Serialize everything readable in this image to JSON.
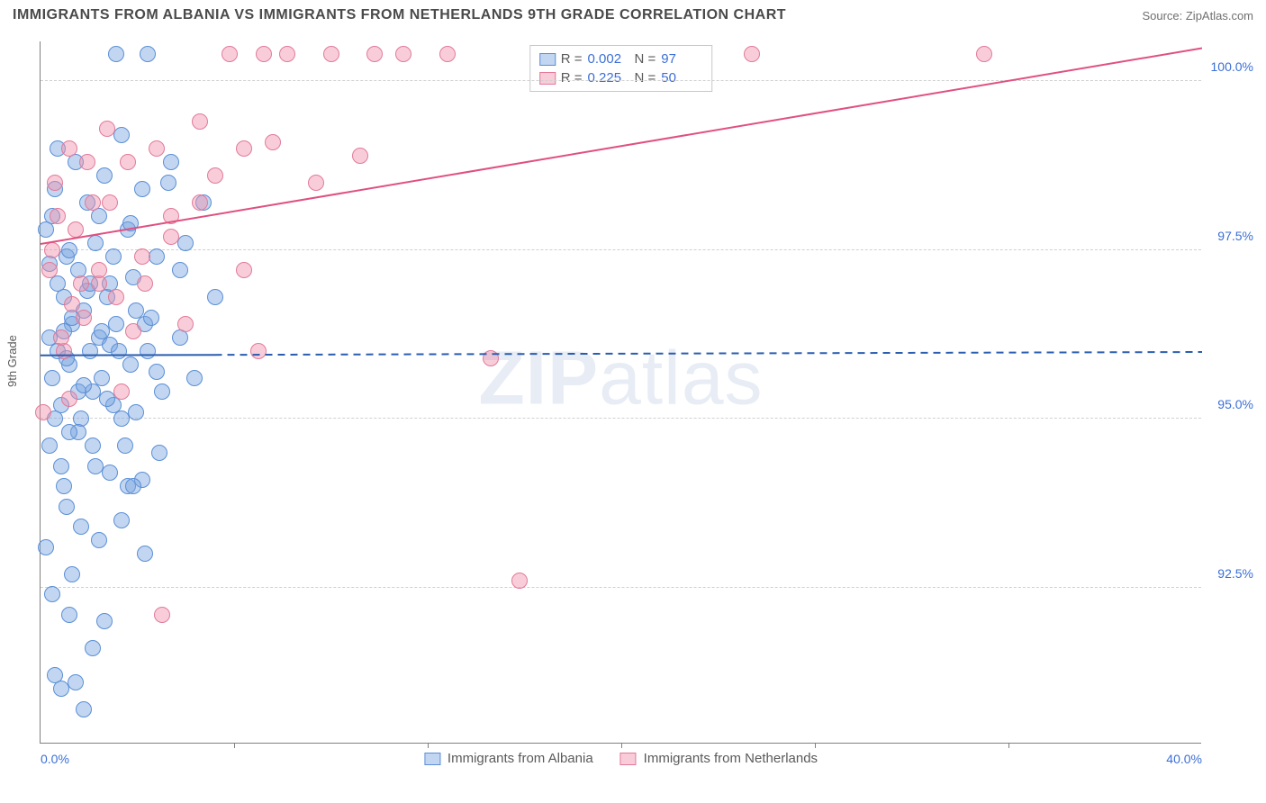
{
  "title": "IMMIGRANTS FROM ALBANIA VS IMMIGRANTS FROM NETHERLANDS 9TH GRADE CORRELATION CHART",
  "source": "Source: ZipAtlas.com",
  "watermark_a": "ZIP",
  "watermark_b": "atlas",
  "ylabel": "9th Grade",
  "chart": {
    "type": "scatter",
    "xlim": [
      0,
      40
    ],
    "ylim": [
      90.2,
      100.6
    ],
    "x_ticks": [
      0,
      40
    ],
    "x_tick_labels": [
      "0.0%",
      "40.0%"
    ],
    "x_minor_ticks": [
      6.67,
      13.33,
      20,
      26.67,
      33.33
    ],
    "y_ticks": [
      92.5,
      95.0,
      97.5,
      100.0
    ],
    "y_tick_labels": [
      "92.5%",
      "95.0%",
      "97.5%",
      "100.0%"
    ],
    "grid_color": "#d0d0d0",
    "background_color": "#ffffff",
    "point_radius": 9,
    "series": [
      {
        "name": "Immigrants from Albania",
        "fill": "rgba(120,165,225,0.45)",
        "stroke": "#5a8fd6",
        "R": "0.002",
        "N": "97",
        "trend": {
          "y_at_x0": 95.95,
          "y_at_x40": 96.0,
          "solid_until_x": 6.0,
          "color": "#2a5db0",
          "width": 2
        },
        "points": [
          [
            0.2,
            97.8
          ],
          [
            0.3,
            96.2
          ],
          [
            0.4,
            95.6
          ],
          [
            0.5,
            98.4
          ],
          [
            0.6,
            97.0
          ],
          [
            0.7,
            95.2
          ],
          [
            0.8,
            96.8
          ],
          [
            0.3,
            94.6
          ],
          [
            0.9,
            97.4
          ],
          [
            1.0,
            95.8
          ],
          [
            1.1,
            96.4
          ],
          [
            1.2,
            98.8
          ],
          [
            0.2,
            93.1
          ],
          [
            1.3,
            97.2
          ],
          [
            1.4,
            95.0
          ],
          [
            1.5,
            96.6
          ],
          [
            0.4,
            92.4
          ],
          [
            1.6,
            98.2
          ],
          [
            1.7,
            96.0
          ],
          [
            1.8,
            95.4
          ],
          [
            0.6,
            99.0
          ],
          [
            1.9,
            97.6
          ],
          [
            2.0,
            96.2
          ],
          [
            0.5,
            91.2
          ],
          [
            2.1,
            95.6
          ],
          [
            2.2,
            98.6
          ],
          [
            2.3,
            96.8
          ],
          [
            0.8,
            94.0
          ],
          [
            2.4,
            97.0
          ],
          [
            2.5,
            95.2
          ],
          [
            0.3,
            97.3
          ],
          [
            2.6,
            96.4
          ],
          [
            2.8,
            99.2
          ],
          [
            0.7,
            91.0
          ],
          [
            3.0,
            97.8
          ],
          [
            3.1,
            95.8
          ],
          [
            1.0,
            92.1
          ],
          [
            3.3,
            96.6
          ],
          [
            3.5,
            98.4
          ],
          [
            0.9,
            93.7
          ],
          [
            3.7,
            96.0
          ],
          [
            4.0,
            97.4
          ],
          [
            1.2,
            91.1
          ],
          [
            4.2,
            95.4
          ],
          [
            4.5,
            98.8
          ],
          [
            1.5,
            90.7
          ],
          [
            4.8,
            96.2
          ],
          [
            5.0,
            97.6
          ],
          [
            1.1,
            92.7
          ],
          [
            5.3,
            95.6
          ],
          [
            5.6,
            98.2
          ],
          [
            1.8,
            91.6
          ],
          [
            6.0,
            96.8
          ],
          [
            2.2,
            92.0
          ],
          [
            0.4,
            98.0
          ],
          [
            0.6,
            96.0
          ],
          [
            1.0,
            97.5
          ],
          [
            1.3,
            95.4
          ],
          [
            1.6,
            96.9
          ],
          [
            2.0,
            98.0
          ],
          [
            2.4,
            96.1
          ],
          [
            2.8,
            95.0
          ],
          [
            3.2,
            97.1
          ],
          [
            3.6,
            96.4
          ],
          [
            4.0,
            95.7
          ],
          [
            4.4,
            98.5
          ],
          [
            4.8,
            97.2
          ],
          [
            0.5,
            95.0
          ],
          [
            0.7,
            94.3
          ],
          [
            0.9,
            95.9
          ],
          [
            1.1,
            96.5
          ],
          [
            1.3,
            94.8
          ],
          [
            1.5,
            95.5
          ],
          [
            1.7,
            97.0
          ],
          [
            1.9,
            94.3
          ],
          [
            2.1,
            96.3
          ],
          [
            2.3,
            95.3
          ],
          [
            2.5,
            97.4
          ],
          [
            2.7,
            96.0
          ],
          [
            2.9,
            94.6
          ],
          [
            3.1,
            97.9
          ],
          [
            3.3,
            95.1
          ],
          [
            3.5,
            94.1
          ],
          [
            3.8,
            96.5
          ],
          [
            4.1,
            94.5
          ],
          [
            3.7,
            100.4
          ],
          [
            2.6,
            100.4
          ],
          [
            3.0,
            94.0
          ],
          [
            1.4,
            93.4
          ],
          [
            1.8,
            94.6
          ],
          [
            0.8,
            96.3
          ],
          [
            1.0,
            94.8
          ],
          [
            2.0,
            93.2
          ],
          [
            2.4,
            94.2
          ],
          [
            2.8,
            93.5
          ],
          [
            3.2,
            94.0
          ],
          [
            3.6,
            93.0
          ]
        ]
      },
      {
        "name": "Immigrants from Netherlands",
        "fill": "rgba(240,145,170,0.45)",
        "stroke": "#e27a9a",
        "R": "0.225",
        "N": "50",
        "trend": {
          "y_at_x0": 97.6,
          "y_at_x40": 100.5,
          "solid_until_x": 40,
          "color": "#e05080",
          "width": 2
        },
        "points": [
          [
            0.3,
            97.2
          ],
          [
            0.5,
            98.5
          ],
          [
            0.8,
            96.0
          ],
          [
            1.0,
            99.0
          ],
          [
            1.2,
            97.8
          ],
          [
            1.5,
            96.5
          ],
          [
            0.1,
            95.1
          ],
          [
            1.8,
            98.2
          ],
          [
            2.0,
            97.0
          ],
          [
            2.3,
            99.3
          ],
          [
            0.4,
            97.5
          ],
          [
            2.6,
            96.8
          ],
          [
            3.0,
            98.8
          ],
          [
            3.5,
            97.4
          ],
          [
            4.0,
            99.0
          ],
          [
            0.7,
            96.2
          ],
          [
            4.5,
            98.0
          ],
          [
            5.0,
            96.4
          ],
          [
            5.5,
            99.4
          ],
          [
            1.0,
            95.3
          ],
          [
            6.0,
            98.6
          ],
          [
            6.5,
            100.4
          ],
          [
            7.0,
            97.2
          ],
          [
            7.7,
            100.4
          ],
          [
            7.5,
            96.0
          ],
          [
            8.0,
            99.1
          ],
          [
            8.5,
            100.4
          ],
          [
            1.4,
            97.0
          ],
          [
            9.5,
            98.5
          ],
          [
            7.0,
            99.0
          ],
          [
            10.0,
            100.4
          ],
          [
            11.0,
            98.9
          ],
          [
            11.5,
            100.4
          ],
          [
            12.5,
            100.4
          ],
          [
            14.0,
            100.4
          ],
          [
            15.5,
            95.9
          ],
          [
            16.5,
            92.6
          ],
          [
            24.5,
            100.4
          ],
          [
            32.5,
            100.4
          ],
          [
            4.2,
            92.1
          ],
          [
            2.0,
            97.2
          ],
          [
            3.2,
            96.3
          ],
          [
            4.5,
            97.7
          ],
          [
            5.5,
            98.2
          ],
          [
            2.8,
            95.4
          ],
          [
            3.6,
            97.0
          ],
          [
            1.6,
            98.8
          ],
          [
            2.4,
            98.2
          ],
          [
            0.6,
            98.0
          ],
          [
            1.1,
            96.7
          ]
        ]
      }
    ]
  },
  "legend_top": {
    "r_label": "R =",
    "n_label": "N ="
  }
}
